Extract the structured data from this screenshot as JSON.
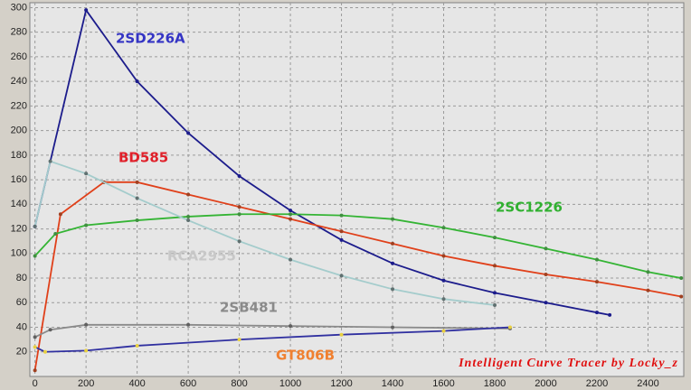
{
  "chart_data": {
    "type": "line",
    "xlim": [
      -20,
      2540
    ],
    "ylim": [
      0,
      304
    ],
    "xticks": [
      0,
      200,
      400,
      600,
      800,
      1000,
      1200,
      1400,
      1600,
      1800,
      2000,
      2200,
      2400
    ],
    "yticks": [
      20,
      40,
      60,
      80,
      100,
      120,
      140,
      160,
      180,
      200,
      220,
      240,
      260,
      280,
      300
    ],
    "grid": true,
    "footer": "Intelligent Curve Tracer by Locky_z",
    "series": [
      {
        "name": "2SD226A",
        "color": "#1c1c8c",
        "label_color": "#3434c4",
        "marker_color": "#1c1c8c",
        "x": [
          0,
          200,
          400,
          600,
          800,
          1000,
          1200,
          1400,
          1600,
          1800,
          2000,
          2200,
          2250
        ],
        "values": [
          122,
          298,
          240,
          198,
          163,
          135,
          111,
          92,
          78,
          68,
          60,
          52,
          50
        ]
      },
      {
        "name": "BD585",
        "color": "#e0401a",
        "label_color": "#e0202a",
        "marker_color": "#a04020",
        "x": [
          0,
          100,
          270,
          400,
          600,
          800,
          1000,
          1200,
          1400,
          1600,
          1800,
          2000,
          2200,
          2400,
          2530
        ],
        "values": [
          5,
          132,
          158,
          158,
          148,
          138,
          128,
          118,
          108,
          98,
          90,
          83,
          77,
          70,
          65
        ]
      },
      {
        "name": "2SC1226",
        "color": "#34b434",
        "label_color": "#30b030",
        "marker_color": "#409040",
        "x": [
          0,
          80,
          200,
          400,
          600,
          800,
          1000,
          1200,
          1400,
          1600,
          1800,
          2000,
          2200,
          2400,
          2530
        ],
        "values": [
          98,
          116,
          123,
          127,
          130,
          132,
          132,
          131,
          128,
          121,
          113,
          104,
          95,
          85,
          80
        ]
      },
      {
        "name": "RCA2955",
        "color": "#a4cccc",
        "label_color": "#c8c8c8",
        "marker_color": "#607070",
        "x": [
          0,
          60,
          200,
          400,
          600,
          800,
          1000,
          1200,
          1400,
          1600,
          1800
        ],
        "values": [
          122,
          175,
          165,
          145,
          127,
          110,
          95,
          82,
          71,
          63,
          58
        ]
      },
      {
        "name": "2SB481",
        "color": "#8a8a8a",
        "label_color": "#8a8a8a",
        "marker_color": "#606060",
        "x": [
          0,
          60,
          200,
          600,
          1000,
          1400,
          1860
        ],
        "values": [
          32,
          38,
          42,
          42,
          41,
          40,
          39
        ]
      },
      {
        "name": "GT806B",
        "color": "#3030a0",
        "label_color": "#f08030",
        "marker_color": "#e8d040",
        "x": [
          0,
          40,
          200,
          400,
          800,
          1200,
          1600,
          1860
        ],
        "values": [
          24,
          20,
          21,
          25,
          30,
          34,
          37,
          40
        ]
      }
    ]
  }
}
